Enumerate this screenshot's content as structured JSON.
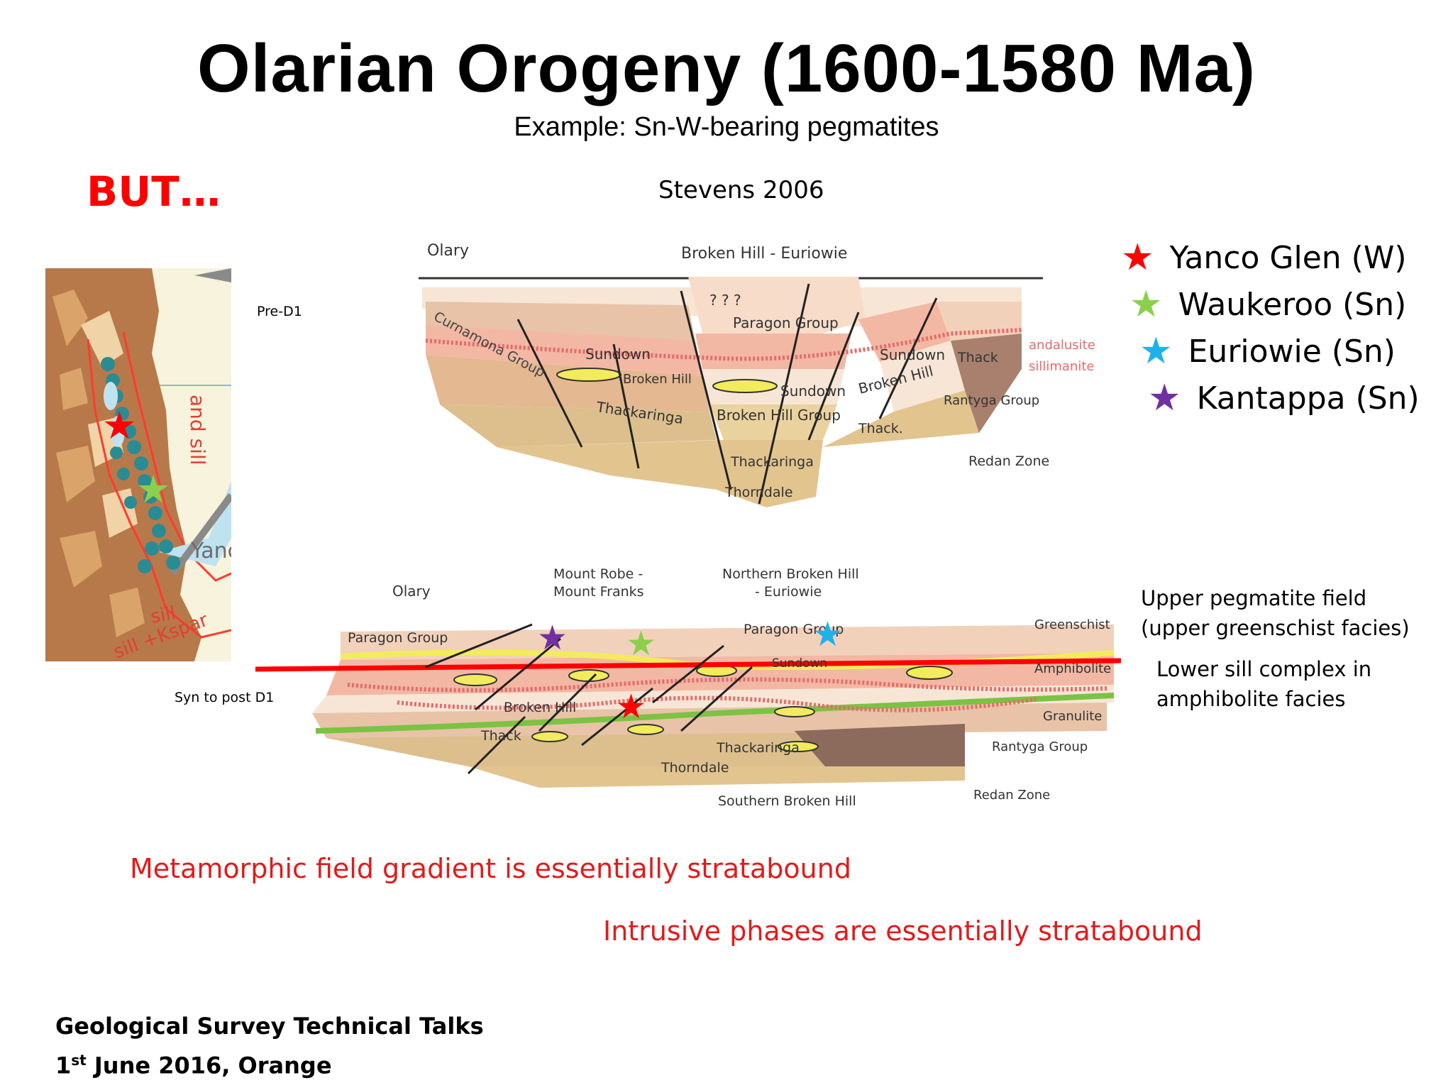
{
  "slide": {
    "title": "Olarian Orogeny (1600-1580 Ma)",
    "subtitle": "Example: Sn-W-bearing pegmatites",
    "but": "BUT…",
    "citation": "Stevens 2006",
    "footer": {
      "line1": "Geological Survey Technical Talks",
      "line2_pre": "1",
      "line2_sup": "st",
      "line2_post": " June 2016, Orange"
    }
  },
  "legend": [
    {
      "label": "Yanco Glen (W)",
      "color": "#ff0000"
    },
    {
      "label": "Waukeroo (Sn)",
      "color": "#8ccf4d"
    },
    {
      "label": "Euriowie (Sn)",
      "color": "#1fb2ea"
    },
    {
      "label": "Kantappa (Sn)",
      "color": "#7030a0"
    }
  ],
  "map": {
    "label_and_sill": "and sill",
    "label_yanco": "Yanc",
    "label_sill": "sill",
    "label_sill_kspar": "sill +Kspar"
  },
  "section_top": {
    "left_label": "Pre-D1",
    "olary": "Olary",
    "broken_hill_euriowie": "Broken Hill - Euriowie",
    "paragon_group": "Paragon Group",
    "curnamona_group": "Curnamona Group",
    "sundown_left": "Sundown",
    "broken_hill_left": "Broken Hill",
    "sundown_mid": "Sundown",
    "sundown_right": "Sundown",
    "thack_right": "Thack",
    "andalusite": "andalusite",
    "sillimanite": "sillimanite",
    "thackaringa_left": "Thackaringa",
    "broken_hill_group": "Broken Hill Group",
    "broken_hill_right": "Broken Hill",
    "rantyga_group": "Rantyga Group",
    "thack_mid": "Thack.",
    "thackaringa_low": "Thackaringa",
    "redan_zone": "Redan Zone",
    "thorndale": "Thorndale",
    "question_marks": "?   ?   ?"
  },
  "section_bottom": {
    "left_label": "Syn to post D1",
    "olary": "Olary",
    "mount_robe": "Mount Robe -",
    "mount_franks": "Mount Franks",
    "northern_bh": "Northern Broken Hill",
    "euriowie": "- Euriowie",
    "paragon_left": "Paragon Group",
    "paragon_mid": "Paragon Group",
    "sundown": "Sundown",
    "broken_hill": "Broken Hill",
    "thack": "Thack",
    "thackaringa": "Thackaringa",
    "thorndale": "Thorndale",
    "southern_bh": "Southern Broken Hill",
    "greenschist": "Greenschist",
    "amphibolite": "Amphibolite",
    "granulite": "Granulite",
    "rantyga_group": "Rantyga Group",
    "redan_zone": "Redan Zone"
  },
  "annotations": {
    "upper_field_1": "Upper pegmatite field",
    "upper_field_2": "(upper greenschist facies)",
    "lower_sill_1": "Lower sill complex in",
    "lower_sill_2": "amphibolite facies",
    "note1": "Metamorphic field gradient is essentially stratabound",
    "note2": "Intrusive phases are essentially stratabound"
  },
  "colors": {
    "red_line": "#ff0000",
    "yellow_lens": "#f2ec5c",
    "green_horizon": "#7cc243",
    "salmon": "#f2b8a4",
    "tan": "#dcbf8d",
    "brown": "#9b7261",
    "map_brown": "#b7794a",
    "map_teal": "#2a8c93"
  }
}
